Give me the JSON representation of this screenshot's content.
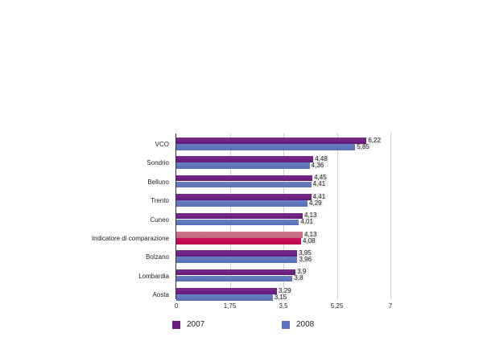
{
  "chart_data": {
    "type": "bar",
    "orientation": "horizontal",
    "title": "",
    "xlabel": "",
    "ylabel": "",
    "xlim": [
      0,
      7
    ],
    "x_ticks": [
      "0",
      "1,75",
      "3,5",
      "5,25",
      "7"
    ],
    "x_tick_values": [
      0,
      1.75,
      3.5,
      5.25,
      7
    ],
    "grid": true,
    "legend_position": "bottom",
    "categories": [
      "VCO",
      "Sondrio",
      "Belluno",
      "Trento",
      "Cuneo",
      "Indicatore di comparazione",
      "Bolzano",
      "Lombardia",
      "Aosta"
    ],
    "series": [
      {
        "name": "2007",
        "color": "#6b1a80",
        "values": [
          6.22,
          4.48,
          4.45,
          4.41,
          4.13,
          4.13,
          3.95,
          3.9,
          3.29
        ],
        "labels": [
          "6,22",
          "4,48",
          "4,45",
          "4,41",
          "4,13",
          "4,13",
          "3,95",
          "3,9",
          "3,29"
        ]
      },
      {
        "name": "2008",
        "color": "#5b74bd",
        "values": [
          5.85,
          4.36,
          4.41,
          4.29,
          4.01,
          4.08,
          3.96,
          3.8,
          3.15
        ],
        "labels": [
          "5,85",
          "4,36",
          "4,41",
          "4,29",
          "4,01",
          "4,08",
          "3,96",
          "3,8",
          "3,15"
        ]
      }
    ],
    "highlight": {
      "category": "Indicatore di comparazione",
      "colors": {
        "2007": "#c96a82",
        "2008": "#c4004f"
      }
    }
  },
  "legend": [
    {
      "label": "2007",
      "color": "#6b1a80"
    },
    {
      "label": "2008",
      "color": "#5b74bd"
    }
  ]
}
